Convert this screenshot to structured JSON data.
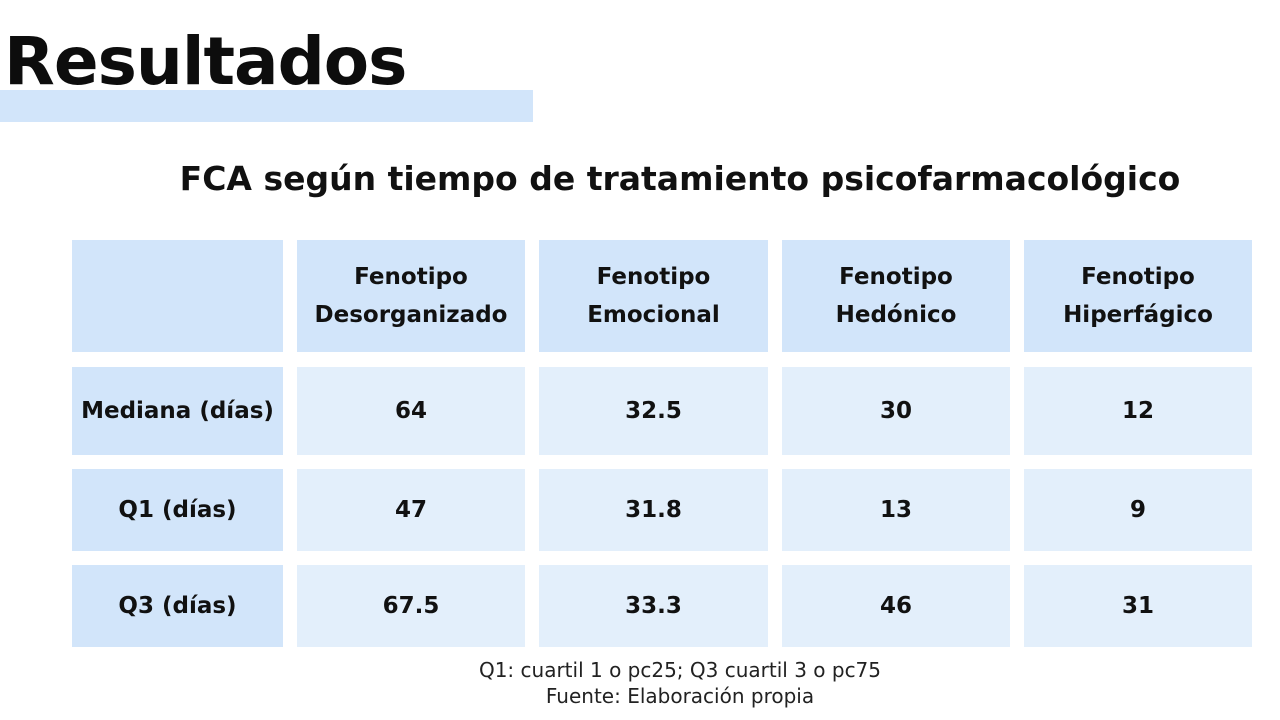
{
  "title": "Resultados",
  "subtitle": "FCA según tiempo de tratamiento psicofarmacológico",
  "table": {
    "header": [
      "",
      "Fenotipo Desorganizado",
      "Fenotipo Emocional",
      "Fenotipo Hedónico",
      "Fenotipo Hiperfágico"
    ],
    "header_lines": [
      [
        "",
        ""
      ],
      [
        "Fenotipo",
        "Desorganizado"
      ],
      [
        "Fenotipo",
        "Emocional"
      ],
      [
        "Fenotipo",
        "Hedónico"
      ],
      [
        "Fenotipo",
        "Hiperfágico"
      ]
    ],
    "rows": [
      {
        "label": "Mediana (días)",
        "values": [
          "64",
          "32.5",
          "30",
          "12"
        ]
      },
      {
        "label": "Q1 (días)",
        "values": [
          "47",
          "31.8",
          "13",
          "9"
        ]
      },
      {
        "label": "Q3 (días)",
        "values": [
          "67.5",
          "33.3",
          "46",
          "31"
        ]
      }
    ]
  },
  "notes": {
    "line1": "Q1: cuartil 1 o pc25; Q3 cuartil 3 o pc75",
    "line2": "Fuente: Elaboración propia"
  },
  "colors": {
    "header_fill": "#d2e5fa",
    "cell_fill": "#e3effb",
    "title_underline": "#d2e5fa"
  }
}
